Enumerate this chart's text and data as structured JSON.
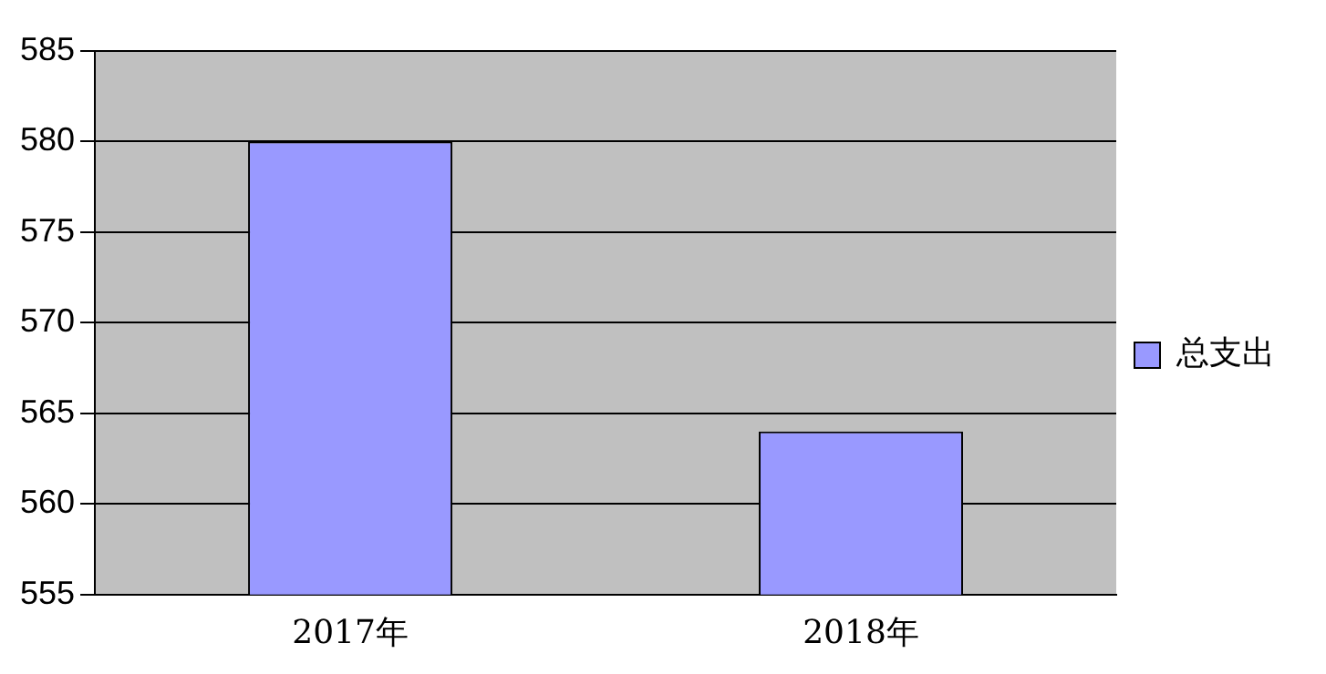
{
  "chart_data": {
    "type": "bar",
    "categories": [
      "2017年",
      "2018年"
    ],
    "series": [
      {
        "name": "总支出",
        "color": "#9999ff",
        "values": [
          580,
          564
        ]
      }
    ],
    "ylim": [
      555,
      585
    ],
    "yticks": [
      555,
      560,
      565,
      570,
      575,
      580,
      585
    ],
    "grid": "y",
    "legend": "right"
  }
}
